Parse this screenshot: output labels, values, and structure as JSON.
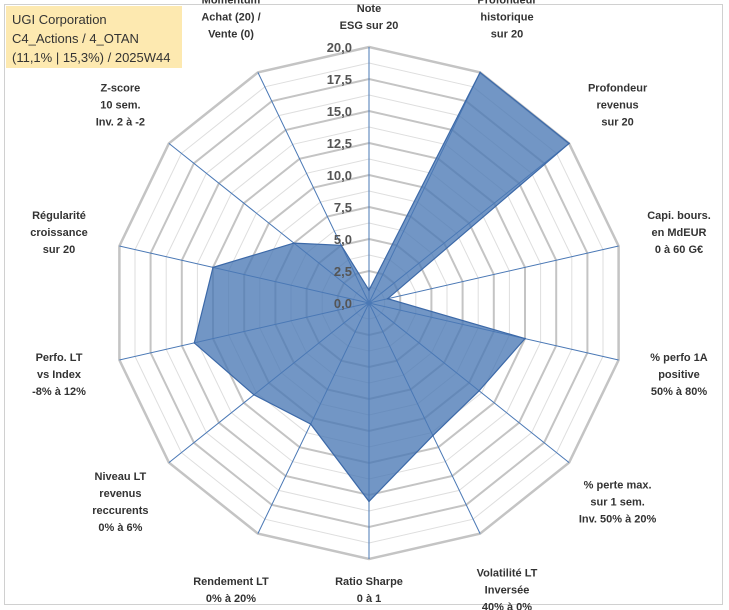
{
  "chart_data": {
    "type": "radar",
    "title_lines": [
      "UGI Corporation",
      "C4_Actions / 4_OTAN",
      "(11,1% | 15,3%) / 2025W44"
    ],
    "range": [
      0,
      20
    ],
    "tick_labels": [
      "0,0",
      "2,5",
      "5,0",
      "7,5",
      "10,0",
      "12,5",
      "15,0",
      "17,5",
      "20,0"
    ],
    "ring_count": 16,
    "fill_color": "#4a78b5",
    "axes": [
      {
        "name": "note-esg",
        "label": [
          "Note",
          "ESG sur 20"
        ],
        "value": 1.0
      },
      {
        "name": "profondeur-historique",
        "label": [
          "Profondeur",
          "historique",
          "sur 20"
        ],
        "value": 20.0
      },
      {
        "name": "profondeur-revenus",
        "label": [
          "Profondeur",
          "revenus",
          "sur 20"
        ],
        "value": 20.0
      },
      {
        "name": "capi-bours",
        "label": [
          "Capi. bours.",
          "en MdEUR",
          "0 à 60 G€"
        ],
        "value": 1.5
      },
      {
        "name": "perfo-1a",
        "label": [
          "% perfo 1A",
          "positive",
          "50% à 80%"
        ],
        "value": 12.5
      },
      {
        "name": "perte-max",
        "label": [
          "% perte max.",
          "sur 1 sem.",
          "Inv. 50% à 20%"
        ],
        "value": 11.0
      },
      {
        "name": "volatilite",
        "label": [
          "Volatilité LT",
          "Inversée",
          "40% à 0%"
        ],
        "value": 11.5
      },
      {
        "name": "ratio-sharpe",
        "label": [
          "Ratio Sharpe",
          "0 à 1"
        ],
        "value": 15.5
      },
      {
        "name": "rendement-lt",
        "label": [
          "Rendement LT",
          "0% à 20%"
        ],
        "value": 10.5
      },
      {
        "name": "revenus-recurrents",
        "label": [
          "Niveau LT",
          "revenus",
          "reccurents",
          "0% à 6%"
        ],
        "value": 11.5
      },
      {
        "name": "perfo-lt-index",
        "label": [
          "Perfo. LT",
          "vs Index",
          "-8% à 12%"
        ],
        "value": 14.0
      },
      {
        "name": "regularite-croissance",
        "label": [
          "Régularité",
          "croissance",
          "sur 20"
        ],
        "value": 12.5
      },
      {
        "name": "z-score",
        "label": [
          "Z-score",
          "10 sem.",
          "Inv. 2 à -2"
        ],
        "value": 7.5
      },
      {
        "name": "momentum",
        "label": [
          "Momentum",
          "Achat (20) /",
          "Vente (0)"
        ],
        "value": 5.0
      }
    ]
  }
}
